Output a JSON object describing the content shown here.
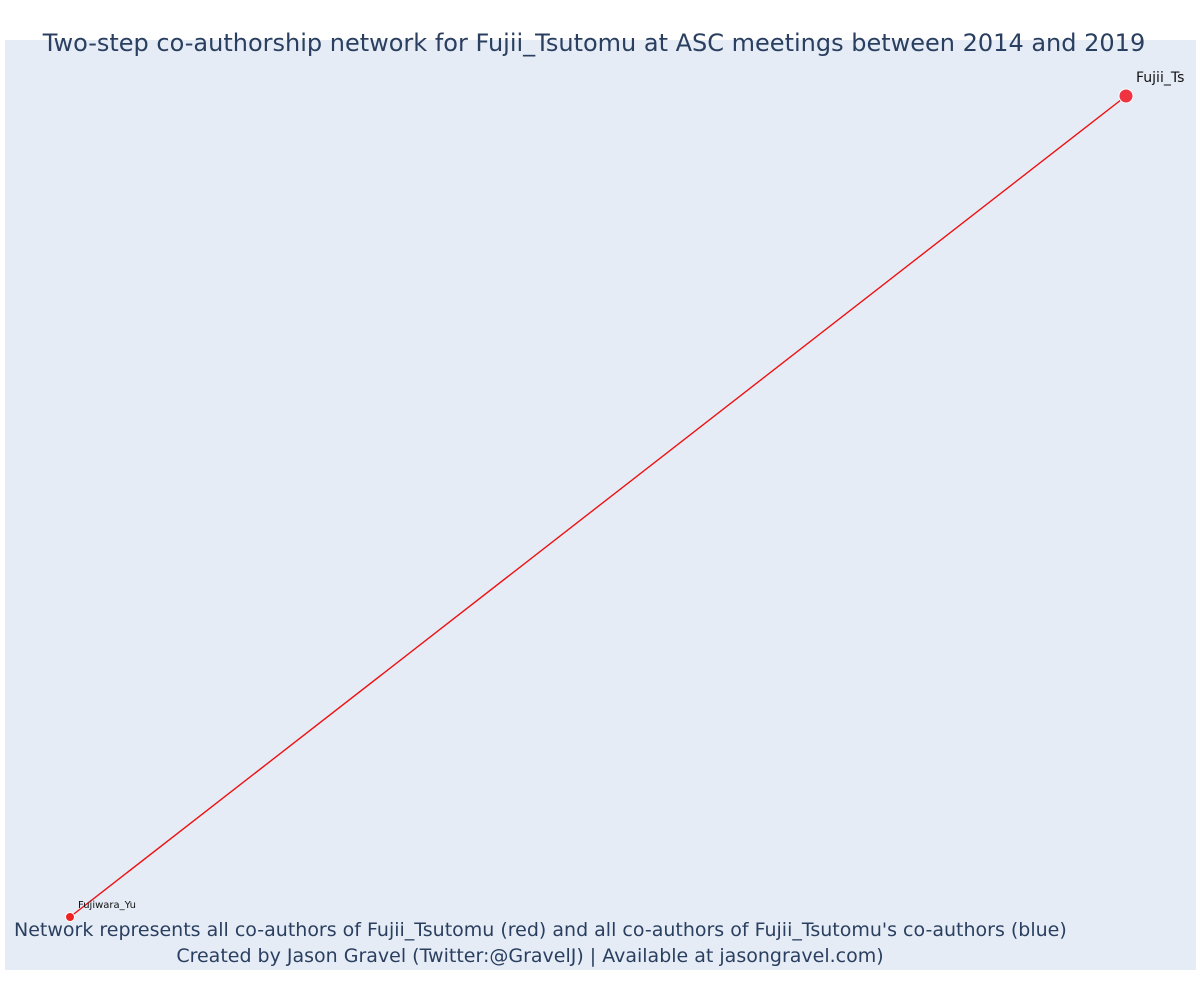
{
  "title": "Two-step co-authorship network for Fujii_Tsutomu at ASC meetings between 2014 and 2019",
  "annotation": {
    "line1": "Network represents all co-authors of Fujii_Tsutomu (red) and all co-authors of Fujii_Tsutomu's co-authors (blue)",
    "line2": "Created by Jason Gravel (Twitter:@GravelJ) | Available at jasongravel.com)"
  },
  "colors": {
    "plot_background": "#e5ecf6",
    "edge": "#ee1111",
    "node_primary": "#ef3340",
    "node_coauthor": "#ee2222",
    "node_outline": "#ffffff",
    "text": "#2a3f5f"
  },
  "network": {
    "nodes": [
      {
        "id": "fujii",
        "label": "Fujii_Ts",
        "role": "focal",
        "color": "#ef3340"
      },
      {
        "id": "fujiwara",
        "label": "Fujiwara_Yu",
        "role": "co-author",
        "color": "#ee2222"
      }
    ],
    "edges": [
      {
        "source": "fujii",
        "target": "fujiwara",
        "color": "#ee1111"
      }
    ]
  }
}
